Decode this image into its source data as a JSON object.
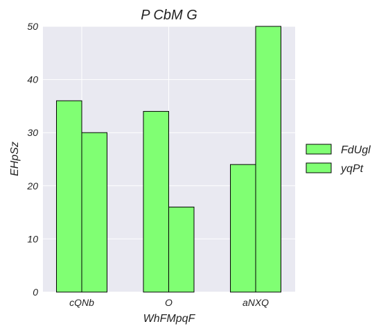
{
  "chart_data": {
    "type": "bar",
    "title": "P CbM  G",
    "xlabel": "WhFMpqF",
    "ylabel": "EHpSz",
    "categories": [
      "cQNb",
      "O",
      "aNXQ"
    ],
    "series": [
      {
        "name": "FdUgl",
        "values": [
          36,
          34,
          24
        ],
        "color": "#80ff73"
      },
      {
        "name": "yqPt",
        "values": [
          30,
          16,
          50
        ],
        "color": "#80ff73"
      }
    ],
    "ylim": [
      0,
      50
    ],
    "yticks": [
      0,
      10,
      20,
      30,
      40,
      50
    ],
    "grid": true,
    "legend_position": "right",
    "colors": {
      "plot_background": "#e9e9f1",
      "grid": "#ffffff",
      "bar_edge": "#000000"
    }
  }
}
